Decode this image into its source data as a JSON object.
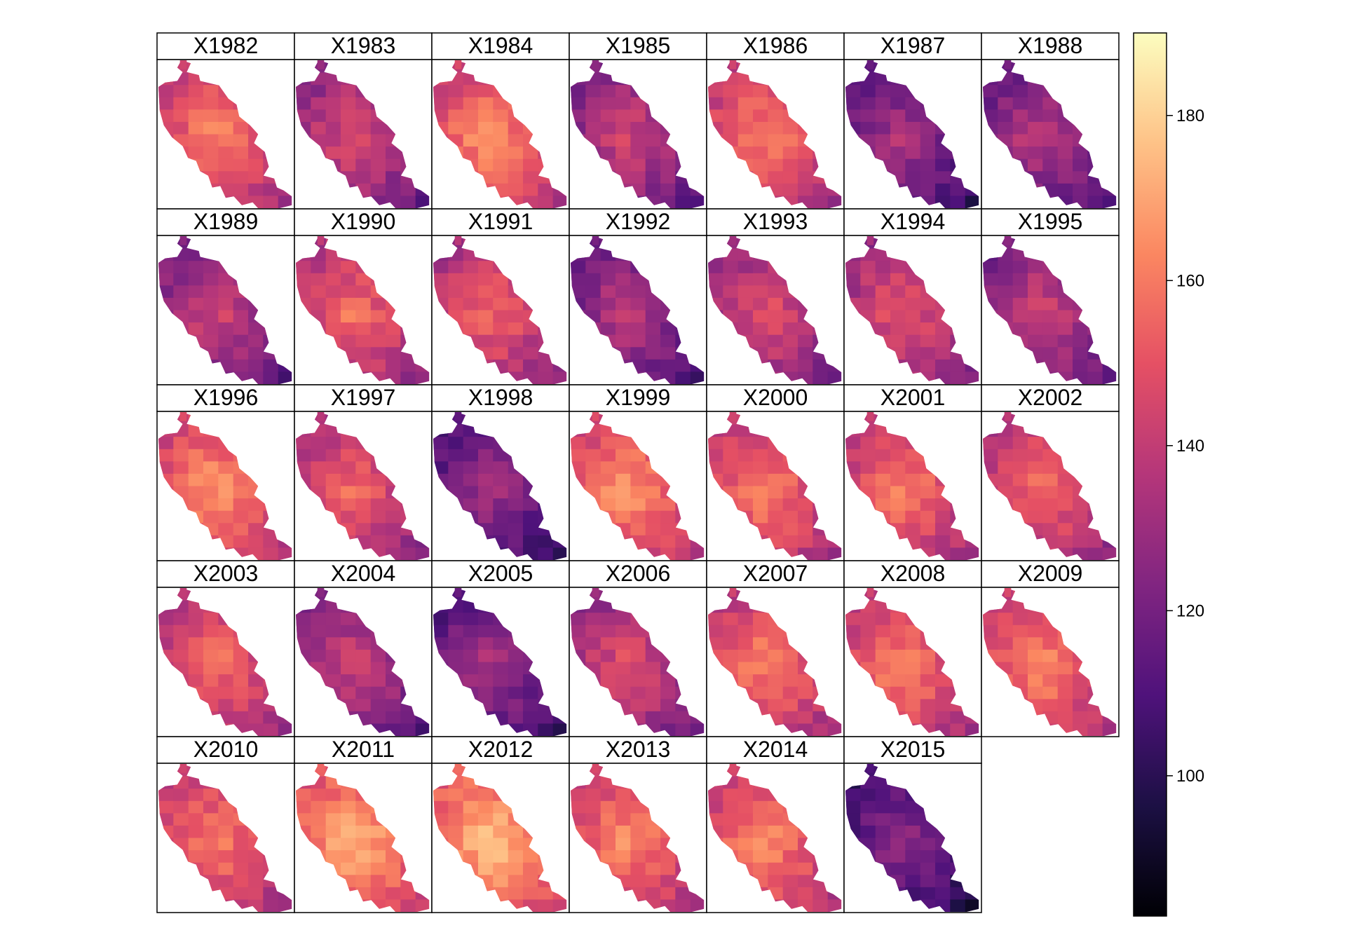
{
  "panels": [
    {
      "label": "X1982",
      "level": 0.62
    },
    {
      "label": "X1983",
      "level": 0.48
    },
    {
      "label": "X1984",
      "level": 0.65
    },
    {
      "label": "X1985",
      "level": 0.45
    },
    {
      "label": "X1986",
      "level": 0.62
    },
    {
      "label": "X1987",
      "level": 0.36
    },
    {
      "label": "X1988",
      "level": 0.4
    },
    {
      "label": "X1989",
      "level": 0.45
    },
    {
      "label": "X1990",
      "level": 0.58
    },
    {
      "label": "X1991",
      "level": 0.56
    },
    {
      "label": "X1992",
      "level": 0.4
    },
    {
      "label": "X1993",
      "level": 0.5
    },
    {
      "label": "X1994",
      "level": 0.52
    },
    {
      "label": "X1995",
      "level": 0.45
    },
    {
      "label": "X1996",
      "level": 0.66
    },
    {
      "label": "X1997",
      "level": 0.56
    },
    {
      "label": "X1998",
      "level": 0.34
    },
    {
      "label": "X1999",
      "level": 0.66
    },
    {
      "label": "X2000",
      "level": 0.62
    },
    {
      "label": "X2001",
      "level": 0.61
    },
    {
      "label": "X2002",
      "level": 0.58
    },
    {
      "label": "X2003",
      "level": 0.58
    },
    {
      "label": "X2004",
      "level": 0.44
    },
    {
      "label": "X2005",
      "level": 0.36
    },
    {
      "label": "X2006",
      "level": 0.5
    },
    {
      "label": "X2007",
      "level": 0.62
    },
    {
      "label": "X2008",
      "level": 0.62
    },
    {
      "label": "X2009",
      "level": 0.64
    },
    {
      "label": "X2010",
      "level": 0.62
    },
    {
      "label": "X2011",
      "level": 0.72
    },
    {
      "label": "X2012",
      "level": 0.74
    },
    {
      "label": "X2013",
      "level": 0.64
    },
    {
      "label": "X2014",
      "level": 0.64
    },
    {
      "label": "X2015",
      "level": 0.3
    }
  ],
  "colorbar": {
    "min": 83,
    "max": 190,
    "ticks": [
      "100",
      "120",
      "140",
      "160",
      "180"
    ],
    "tick_values": [
      100,
      120,
      140,
      160,
      180
    ],
    "palette": [
      "#000004",
      "#1c1044",
      "#4f127b",
      "#812581",
      "#b5367a",
      "#e55064",
      "#fb8761",
      "#fec287",
      "#fcfdbf"
    ]
  }
}
